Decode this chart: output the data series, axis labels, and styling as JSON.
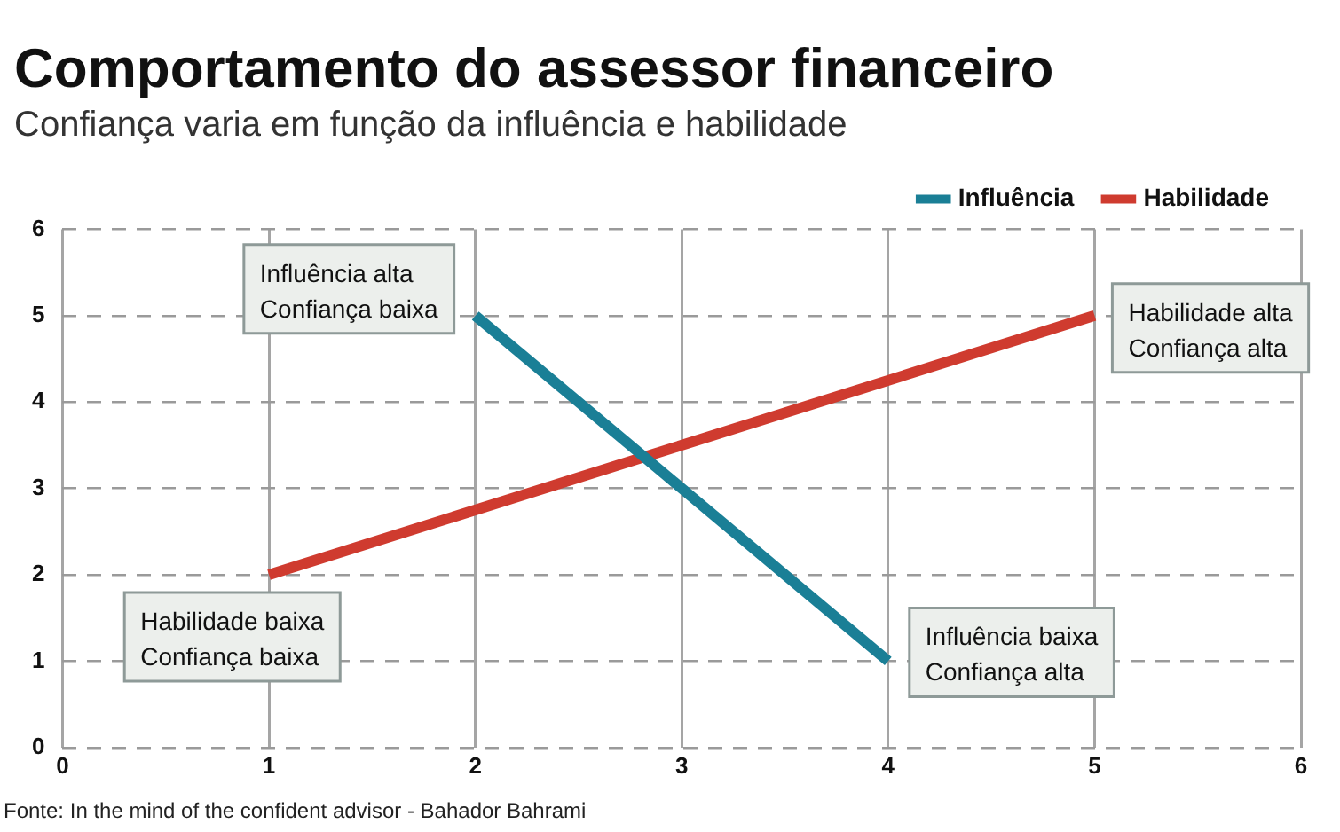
{
  "chart_data": {
    "type": "line",
    "title": "Comportamento do assessor financeiro",
    "subtitle": "Confiança varia em função da influência e habilidade",
    "series": [
      {
        "name": "Influência",
        "color": "#1a7f96",
        "x": [
          2,
          4
        ],
        "values": [
          5,
          1
        ]
      },
      {
        "name": "Habilidade",
        "color": "#cf3b2f",
        "x": [
          1,
          5
        ],
        "values": [
          2,
          5
        ]
      }
    ],
    "xlim": [
      0,
      6
    ],
    "xticks": [
      0,
      1,
      2,
      3,
      4,
      5,
      6
    ],
    "ylim": [
      0,
      6
    ],
    "yticks": [
      0,
      1,
      2,
      3,
      4,
      5,
      6
    ],
    "grid": true,
    "legend": "top right",
    "marker": "none",
    "line_style": "solid",
    "annotations": [
      {
        "text": "Influência alta\nConfiança baixa",
        "x": 2,
        "y": 5
      },
      {
        "text": "Influência baixa\nConfiança alta",
        "x": 4,
        "y": 1
      },
      {
        "text": "Habilidade baixa\nConfiança baixa",
        "x": 1,
        "y": 2
      },
      {
        "text": "Habilidade alta\nConfiança alta",
        "x": 5,
        "y": 5
      },
      "Fonte: In the mind of the confident advisor - Bahador Bahrami"
    ]
  }
}
